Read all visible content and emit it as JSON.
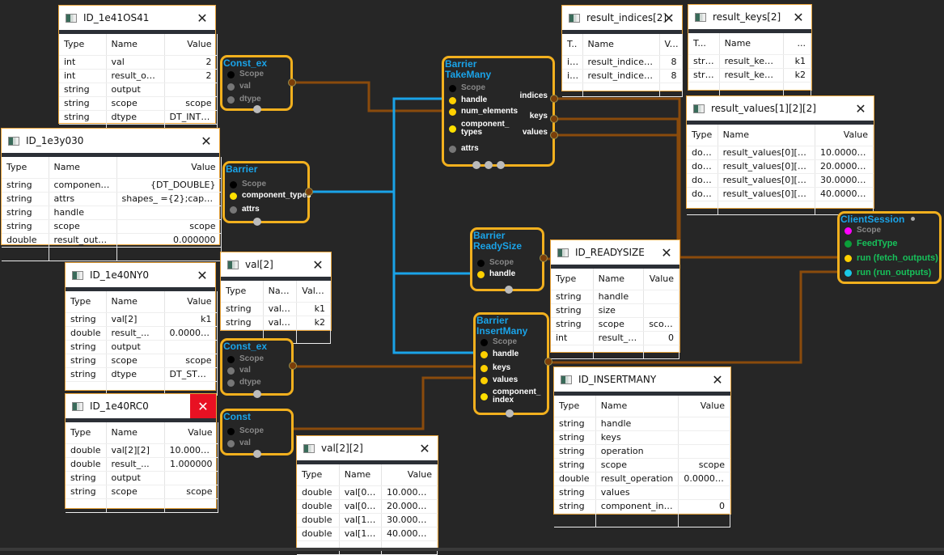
{
  "colors": {
    "wire_brown": "#8a4b0c",
    "wire_blue": "#1aa3e8",
    "node_border": "#f2b01e",
    "node_title": "#1aa3e8",
    "background": "#262626"
  },
  "panels": [
    {
      "id": "p1",
      "title": "ID_1e41OS41",
      "headers": [
        "Type",
        "Name",
        "Value"
      ],
      "rows": [
        [
          "int",
          "val",
          "2"
        ],
        [
          "int",
          "result_output",
          "2"
        ],
        [
          "string",
          "output",
          ""
        ],
        [
          "string",
          "scope",
          "scope"
        ],
        [
          "string",
          "dtype",
          "DT_INT32"
        ]
      ]
    },
    {
      "id": "p2",
      "title": "ID_1e3y030",
      "headers": [
        "Type",
        "Name",
        "Value"
      ],
      "rows": [
        [
          "string",
          "component_t...",
          "{DT_DOUBLE}"
        ],
        [
          "string",
          "attrs",
          "shapes_ ={2};capaci..."
        ],
        [
          "string",
          "handle",
          ""
        ],
        [
          "string",
          "scope",
          "scope"
        ],
        [
          "double",
          "result_output",
          "0.000000"
        ]
      ]
    },
    {
      "id": "p3",
      "title": "ID_1e40NY0",
      "headers": [
        "Type",
        "Name",
        "Value"
      ],
      "rows": [
        [
          "string",
          "val[2]",
          "k1"
        ],
        [
          "double",
          "result_...",
          "0.000000"
        ],
        [
          "string",
          "output",
          ""
        ],
        [
          "string",
          "scope",
          "scope"
        ],
        [
          "string",
          "dtype",
          "DT_STRING"
        ]
      ]
    },
    {
      "id": "p4",
      "title": "val[2]",
      "headers": [
        "Type",
        "Name",
        "Value"
      ],
      "rows": [
        [
          "string",
          "val[0]",
          "k1"
        ],
        [
          "string",
          "val[1]",
          "k2"
        ]
      ]
    },
    {
      "id": "p5",
      "title": "ID_1e40RC0",
      "close_active": true,
      "headers": [
        "Type",
        "Name",
        "Value"
      ],
      "rows": [
        [
          "double",
          "val[2][2]",
          "10.000000"
        ],
        [
          "double",
          "result_...",
          "1.000000"
        ],
        [
          "string",
          "output",
          ""
        ],
        [
          "string",
          "scope",
          "scope"
        ]
      ]
    },
    {
      "id": "p6",
      "title": "val[2][2]",
      "headers": [
        "Type",
        "Name",
        "Value"
      ],
      "rows": [
        [
          "double",
          "val[0][0]",
          "10.000000"
        ],
        [
          "double",
          "val[0][1]",
          "20.000000"
        ],
        [
          "double",
          "val[1][0]",
          "30.000000"
        ],
        [
          "double",
          "val[1][1]",
          "40.000000"
        ]
      ]
    },
    {
      "id": "p7",
      "title": "result_indices[2]",
      "headers": [
        "T..",
        "Name",
        "V..."
      ],
      "rows": [
        [
          "int",
          "result_indices[0]",
          "8"
        ],
        [
          "int",
          "result_indices[1]",
          "8"
        ]
      ]
    },
    {
      "id": "p8",
      "title": "result_keys[2]",
      "headers": [
        "T...",
        "Name",
        "..."
      ],
      "rows": [
        [
          "string",
          "result_keys[0]",
          "k1"
        ],
        [
          "string",
          "result_keys[1]",
          "k2"
        ]
      ]
    },
    {
      "id": "p9",
      "title": "result_values[1][2][2]",
      "headers": [
        "Type",
        "Name",
        "Value"
      ],
      "rows": [
        [
          "double",
          "result_values[0][0][0]",
          "10.000000"
        ],
        [
          "double",
          "result_values[0][0][1]",
          "20.000000"
        ],
        [
          "double",
          "result_values[0][1][0]",
          "30.000000"
        ],
        [
          "double",
          "result_values[0][1][1]",
          "40.000000"
        ]
      ]
    },
    {
      "id": "p10",
      "title": "ID_READYSIZE",
      "headers": [
        "Type",
        "Name",
        "Value"
      ],
      "rows": [
        [
          "string",
          "handle",
          ""
        ],
        [
          "string",
          "size",
          ""
        ],
        [
          "string",
          "scope",
          "scope"
        ],
        [
          "int",
          "result_size",
          "0"
        ]
      ]
    },
    {
      "id": "p11",
      "title": "ID_INSERTMANY",
      "headers": [
        "Type",
        "Name",
        "Value"
      ],
      "rows": [
        [
          "string",
          "handle",
          ""
        ],
        [
          "string",
          "keys",
          ""
        ],
        [
          "string",
          "operation",
          ""
        ],
        [
          "string",
          "scope",
          "scope"
        ],
        [
          "double",
          "result_operation",
          "0.000000"
        ],
        [
          "string",
          "values",
          ""
        ],
        [
          "string",
          "component_index",
          "0"
        ]
      ]
    }
  ],
  "nodes": [
    {
      "id": "n1",
      "title": "Const_ex",
      "ports": [
        {
          "label": "Scope",
          "color": "#000",
          "dim": true
        },
        {
          "label": "val",
          "color": "#777",
          "dim": true
        },
        {
          "label": "dtype",
          "color": "#777",
          "dim": true
        }
      ]
    },
    {
      "id": "n2",
      "title": "Barrier",
      "ports": [
        {
          "label": "Scope",
          "color": "#000",
          "dim": true
        },
        {
          "label": "component_types",
          "color": "#ffe000"
        },
        {
          "label": "attrs",
          "color": "#777"
        }
      ]
    },
    {
      "id": "n3",
      "title": "Barrier\nTakeMany",
      "ports": [
        {
          "label": "Scope",
          "color": "#000",
          "dim": true
        },
        {
          "label": "handle",
          "color": "#ffd000"
        },
        {
          "label": "num_elements",
          "color": "#ffd000"
        },
        {
          "label": "component_\ntypes",
          "color": "#ffe000"
        },
        {
          "label": "attrs",
          "color": "#777"
        }
      ],
      "outputs": [
        "indices",
        "keys",
        "values"
      ]
    },
    {
      "id": "n4",
      "title": "Barrier\nReadySize",
      "ports": [
        {
          "label": "Scope",
          "color": "#000",
          "dim": true
        },
        {
          "label": "handle",
          "color": "#ffd000"
        }
      ]
    },
    {
      "id": "n5",
      "title": "Barrier\nInsertMany",
      "ports": [
        {
          "label": "Scope",
          "color": "#000",
          "dim": true
        },
        {
          "label": "handle",
          "color": "#ffd000"
        },
        {
          "label": "keys",
          "color": "#ffd000"
        },
        {
          "label": "values",
          "color": "#ffd000"
        },
        {
          "label": "component_\nindex",
          "color": "#ffe000"
        }
      ]
    },
    {
      "id": "n6",
      "title": "Const_ex",
      "ports": [
        {
          "label": "Scope",
          "color": "#000",
          "dim": true
        },
        {
          "label": "val",
          "color": "#777",
          "dim": true
        },
        {
          "label": "dtype",
          "color": "#777",
          "dim": true
        }
      ]
    },
    {
      "id": "n7",
      "title": "Const",
      "ports": [
        {
          "label": "Scope",
          "color": "#000",
          "dim": true
        },
        {
          "label": "val",
          "color": "#777",
          "dim": true
        }
      ]
    },
    {
      "id": "n8",
      "title": "ClientSession",
      "ports": [
        {
          "label": "Scope",
          "color": "#ff00ff",
          "dim": true
        },
        {
          "label": "FeedType",
          "color": "#0b9e3a",
          "green": true
        },
        {
          "label": "run (fetch_outputs)",
          "color": "#ffd000",
          "green": true
        },
        {
          "label": "run (run_outputs)",
          "color": "#1ac8e8",
          "green": true
        }
      ]
    }
  ]
}
